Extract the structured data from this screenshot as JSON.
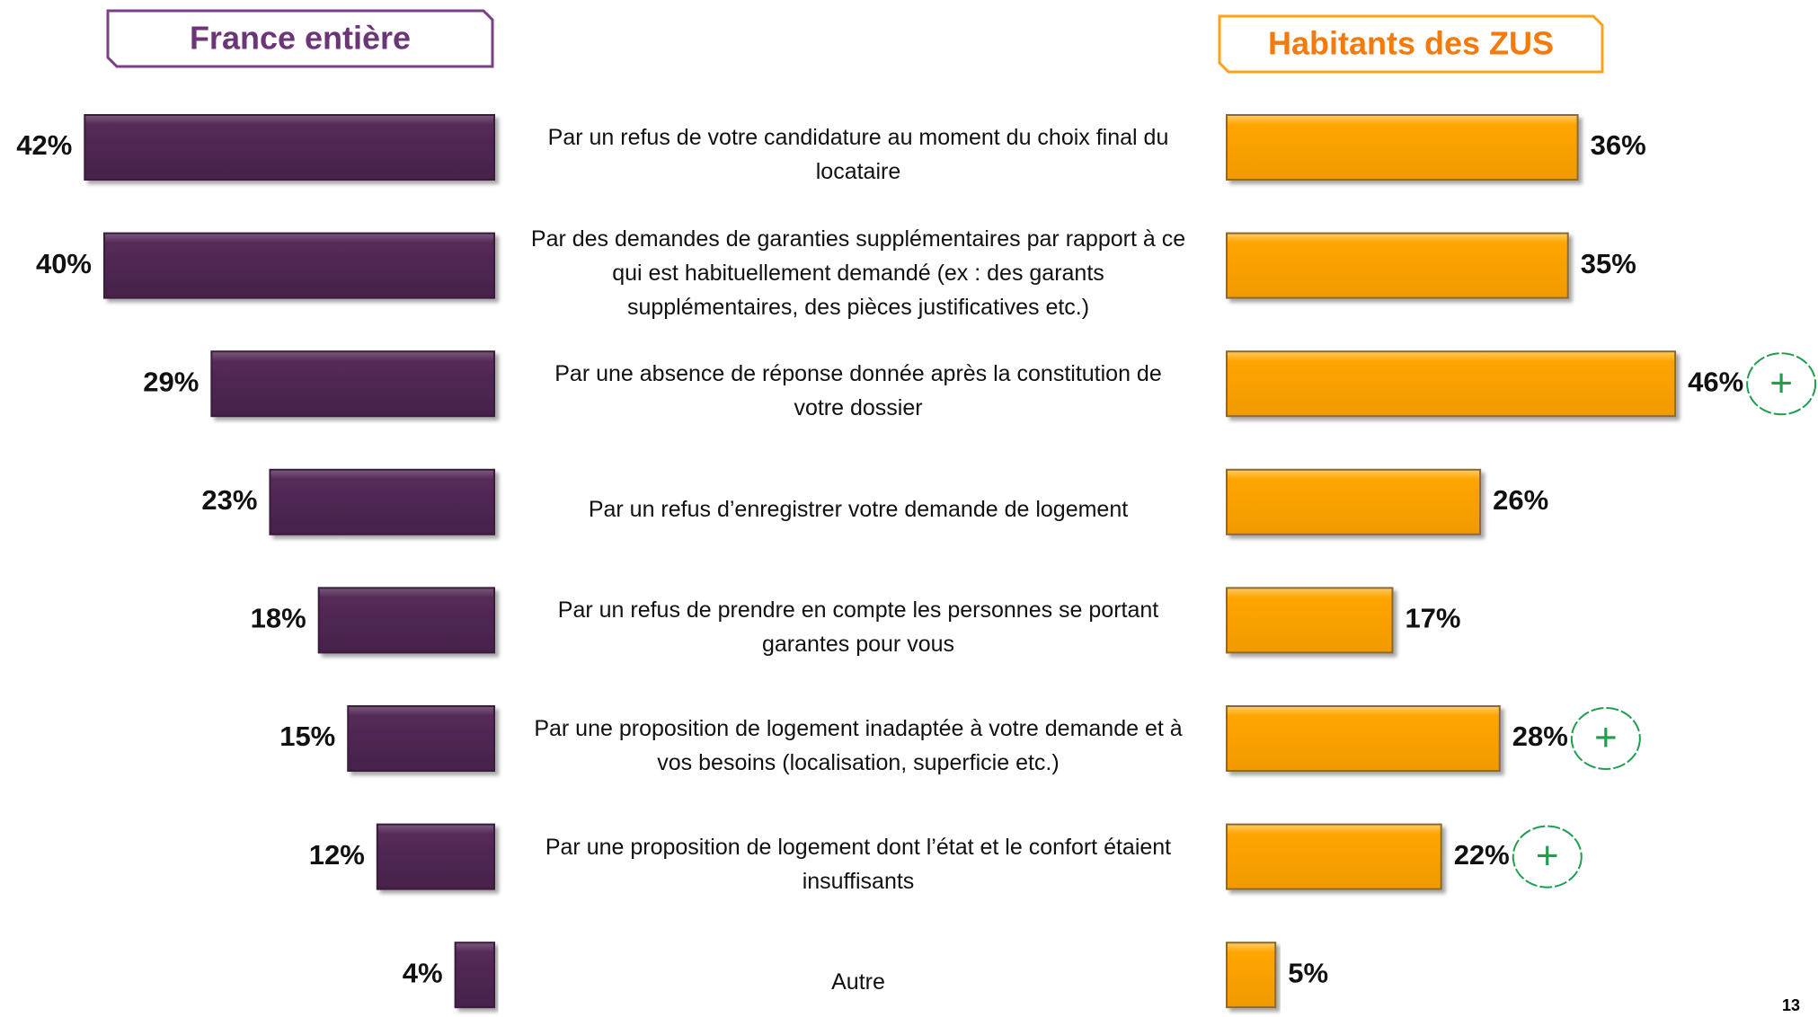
{
  "chart_data": [
    {
      "type": "bar",
      "title": "France entière",
      "color": "#552a57",
      "frame_color": "#7b3f86",
      "title_color": "#6b3577",
      "categories": [
        "Par un refus de votre candidature au moment du choix final du locataire",
        "Par des demandes de garanties supplémentaires par rapport à ce qui est habituellement demandé (ex : des garants supplémentaires, des pièces justificatives etc.)",
        "Par une absence de réponse donnée après la constitution de votre dossier",
        "Par un refus d’enregistrer votre demande de logement",
        "Par un refus de prendre en compte les personnes se portant garantes pour vous",
        "Par une proposition de logement inadaptée à votre demande et à vos besoins (localisation, superficie etc.)",
        "Par une proposition de logement dont l’état et le confort étaient insuffisants",
        "Autre"
      ],
      "values": [
        42,
        40,
        29,
        23,
        18,
        15,
        12,
        4
      ],
      "value_labels": [
        "42%",
        "40%",
        "29%",
        "23%",
        "18%",
        "15%",
        "12%",
        "4%"
      ]
    },
    {
      "type": "bar",
      "title": "Habitants des ZUS",
      "color": "#ffa500",
      "frame_color": "#ffa21a",
      "title_color": "#f47a0c",
      "values": [
        36,
        35,
        46,
        26,
        17,
        28,
        22,
        5
      ],
      "value_labels": [
        "36%",
        "35%",
        "46%",
        "26%",
        "17%",
        "28%",
        "22%",
        "5%"
      ],
      "significant": [
        false,
        false,
        true,
        false,
        false,
        true,
        true,
        false
      ],
      "marker_label": "+",
      "marker_color": "#1e9e4e"
    }
  ],
  "page_number": "13"
}
